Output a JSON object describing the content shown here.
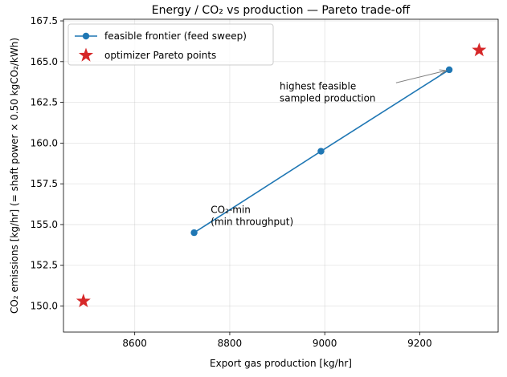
{
  "chart_data": {
    "type": "line",
    "title": "Energy / CO₂ vs production — Pareto trade-off",
    "xlabel": "Export gas production [kg/hr]",
    "ylabel": "CO₂ emissions [kg/hr]  (= shaft power × 0.50 kgCO₂/kWh)",
    "xlim": [
      8450,
      9365
    ],
    "ylim": [
      148.4,
      167.6
    ],
    "xticks": [
      8600,
      8800,
      9000,
      9200
    ],
    "yticks": [
      150.0,
      152.5,
      155.0,
      157.5,
      160.0,
      162.5,
      165.0,
      167.5
    ],
    "grid": true,
    "legend_position": "upper-left",
    "series": [
      {
        "name": "feasible frontier (feed sweep)",
        "kind": "line-marker",
        "color": "#1f77b4",
        "x": [
          8725,
          8992,
          9262
        ],
        "y": [
          154.5,
          159.5,
          164.5
        ]
      },
      {
        "name": "optimizer Pareto points",
        "kind": "star",
        "color": "#d62728",
        "x": [
          8492,
          9325
        ],
        "y": [
          150.3,
          165.7
        ]
      }
    ],
    "annotations": [
      {
        "lines": [
          "CO₂-min",
          "(min throughput)"
        ],
        "x": 8760,
        "y": 155.7
      },
      {
        "lines": [
          "highest feasible",
          "sampled production"
        ],
        "x": 8905,
        "y": 163.3,
        "arrow_from": [
          9150,
          163.7
        ],
        "arrow_to": [
          9262,
          164.5
        ]
      }
    ]
  }
}
